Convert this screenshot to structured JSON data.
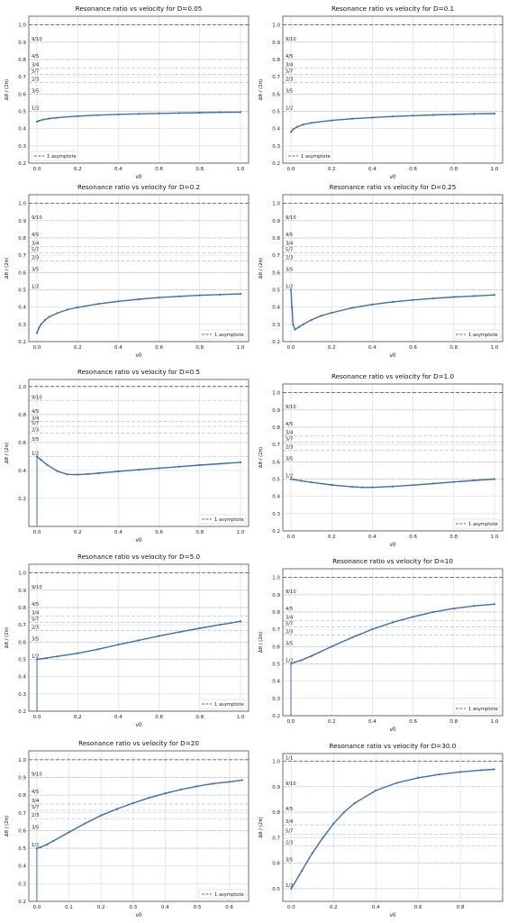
{
  "chart_data": [
    {
      "type": "line",
      "title": "Resonance ratio vs velocity for D=0.05",
      "xlabel": "v0",
      "ylabel": "Δθ / (2π)",
      "xlim": [
        -0.04,
        1.04
      ],
      "ylim": [
        0.2,
        1.05
      ],
      "xticks": [
        "0.0",
        "0.2",
        "0.4",
        "0.6",
        "0.8",
        "1.0"
      ],
      "yticks": [
        "0.2",
        "0.3",
        "0.4",
        "0.5",
        "0.6",
        "0.7",
        "0.8",
        "0.9",
        "1.0"
      ],
      "legend": {
        "label": "1 asymptote",
        "position": "lower-left"
      },
      "x": [
        0.0,
        0.01,
        0.03,
        0.06,
        0.1,
        0.2,
        0.3,
        0.4,
        0.5,
        0.6,
        0.7,
        0.8,
        0.9,
        1.0
      ],
      "y": [
        0.44,
        0.445,
        0.452,
        0.458,
        0.463,
        0.472,
        0.478,
        0.482,
        0.485,
        0.488,
        0.49,
        0.492,
        0.494,
        0.495
      ]
    },
    {
      "type": "line",
      "title": "Resonance ratio vs velocity for D=0.1",
      "xlabel": "v0",
      "ylabel": "Δθ / (2π)",
      "xlim": [
        -0.04,
        1.04
      ],
      "ylim": [
        0.2,
        1.05
      ],
      "xticks": [
        "0.0",
        "0.2",
        "0.4",
        "0.6",
        "0.8",
        "1.0"
      ],
      "yticks": [
        "0.2",
        "0.3",
        "0.4",
        "0.5",
        "0.6",
        "0.7",
        "0.8",
        "0.9",
        "1.0"
      ],
      "legend": {
        "label": "1 asymptote",
        "position": "lower-left"
      },
      "x": [
        0.0,
        0.01,
        0.03,
        0.06,
        0.1,
        0.2,
        0.3,
        0.4,
        0.5,
        0.6,
        0.7,
        0.8,
        0.9,
        1.0
      ],
      "y": [
        0.38,
        0.395,
        0.41,
        0.423,
        0.433,
        0.447,
        0.457,
        0.464,
        0.47,
        0.475,
        0.479,
        0.482,
        0.485,
        0.487
      ]
    },
    {
      "type": "line",
      "title": "Resonance ratio vs velocity for D=0.2",
      "xlabel": "v0",
      "ylabel": "Δθ / (2π)",
      "xlim": [
        -0.04,
        1.04
      ],
      "ylim": [
        0.2,
        1.05
      ],
      "xticks": [
        "0.0",
        "0.2",
        "0.4",
        "0.6",
        "0.8",
        "1.0"
      ],
      "yticks": [
        "0.2",
        "0.3",
        "0.4",
        "0.5",
        "0.6",
        "0.7",
        "0.8",
        "0.9",
        "1.0"
      ],
      "legend": {
        "label": "1 asymptote",
        "position": "lower-right"
      },
      "x": [
        0.0,
        0.01,
        0.02,
        0.04,
        0.06,
        0.1,
        0.15,
        0.2,
        0.3,
        0.4,
        0.5,
        0.6,
        0.7,
        0.8,
        0.9,
        1.0
      ],
      "y": [
        0.25,
        0.28,
        0.3,
        0.325,
        0.343,
        0.365,
        0.385,
        0.398,
        0.418,
        0.433,
        0.445,
        0.455,
        0.462,
        0.468,
        0.472,
        0.476
      ]
    },
    {
      "type": "line",
      "title": "Resonance ratio vs velocity for D=0.25",
      "xlabel": "v0",
      "ylabel": "Δθ / (2π)",
      "xlim": [
        -0.04,
        1.04
      ],
      "ylim": [
        0.2,
        1.05
      ],
      "xticks": [
        "0.0",
        "0.2",
        "0.4",
        "0.6",
        "0.8",
        "1.0"
      ],
      "yticks": [
        "0.2",
        "0.3",
        "0.4",
        "0.5",
        "0.6",
        "0.7",
        "0.8",
        "0.9",
        "1.0"
      ],
      "legend": {
        "label": "1 asymptote",
        "position": "lower-right"
      },
      "x": [
        0.0,
        0.005,
        0.01,
        0.02,
        0.04,
        0.06,
        0.1,
        0.15,
        0.2,
        0.3,
        0.4,
        0.5,
        0.6,
        0.7,
        0.8,
        0.9,
        1.0
      ],
      "y": [
        0.5,
        0.4,
        0.3,
        0.27,
        0.285,
        0.3,
        0.325,
        0.35,
        0.367,
        0.395,
        0.415,
        0.43,
        0.441,
        0.45,
        0.458,
        0.464,
        0.47
      ]
    },
    {
      "type": "line",
      "title": "Resonance ratio vs velocity for D=0.5",
      "xlabel": "v0",
      "ylabel": "Δθ / (2π)",
      "xlim": [
        -0.04,
        1.04
      ],
      "ylim": [
        0.0,
        1.05
      ],
      "xticks": [
        "0.0",
        "0.2",
        "0.4",
        "0.6",
        "0.8",
        "1.0"
      ],
      "yticks": [
        "0.2",
        "0.4",
        "0.6",
        "0.8",
        "1.0"
      ],
      "legend": {
        "label": "1 asymptote",
        "position": "lower-right"
      },
      "x": [
        0.0,
        0.02,
        0.05,
        0.1,
        0.15,
        0.2,
        0.25,
        0.3,
        0.4,
        0.5,
        0.6,
        0.7,
        0.8,
        0.9,
        1.0
      ],
      "y": [
        0.5,
        0.475,
        0.44,
        0.395,
        0.372,
        0.37,
        0.374,
        0.38,
        0.393,
        0.405,
        0.416,
        0.427,
        0.438,
        0.448,
        0.458
      ]
    },
    {
      "type": "line",
      "title": "Resonance ratio vs velocity for D=1.0",
      "xlabel": "v0",
      "ylabel": "Δθ / (2π)",
      "xlim": [
        -0.04,
        1.04
      ],
      "ylim": [
        0.2,
        1.05
      ],
      "xticks": [
        "0.0",
        "0.2",
        "0.4",
        "0.6",
        "0.8",
        "1.0"
      ],
      "yticks": [
        "0.2",
        "0.3",
        "0.4",
        "0.5",
        "0.6",
        "0.7",
        "0.8",
        "0.9",
        "1.0"
      ],
      "legend": {
        "label": "1 asymptote",
        "position": "lower-right"
      },
      "x": [
        0.0,
        0.05,
        0.1,
        0.2,
        0.3,
        0.35,
        0.4,
        0.5,
        0.6,
        0.7,
        0.8,
        0.9,
        1.0
      ],
      "y": [
        0.5,
        0.49,
        0.481,
        0.466,
        0.455,
        0.452,
        0.452,
        0.457,
        0.465,
        0.474,
        0.483,
        0.492,
        0.5
      ]
    },
    {
      "type": "line",
      "title": "Resonance ratio vs velocity for D=5.0",
      "xlabel": "v0",
      "ylabel": "Δθ / (2π)",
      "xlim": [
        -0.04,
        1.04
      ],
      "ylim": [
        0.2,
        1.05
      ],
      "xticks": [
        "0.0",
        "0.2",
        "0.4",
        "0.6",
        "0.8",
        "1.0"
      ],
      "yticks": [
        "0.2",
        "0.3",
        "0.4",
        "0.5",
        "0.6",
        "0.7",
        "0.8",
        "0.9",
        "1.0"
      ],
      "legend": {
        "label": "1 asymptote",
        "position": "lower-right"
      },
      "x": [
        0.0,
        0.05,
        0.1,
        0.2,
        0.3,
        0.4,
        0.5,
        0.6,
        0.7,
        0.8,
        0.9,
        1.0
      ],
      "y": [
        0.5,
        0.508,
        0.517,
        0.535,
        0.558,
        0.585,
        0.61,
        0.635,
        0.658,
        0.68,
        0.7,
        0.72
      ]
    },
    {
      "type": "line",
      "title": "Resonance ratio vs velocity for D=10",
      "xlabel": "v0",
      "ylabel": "Δθ / (2π)",
      "xlim": [
        -0.04,
        1.04
      ],
      "ylim": [
        0.2,
        1.05
      ],
      "xticks": [
        "0.0",
        "0.2",
        "0.4",
        "0.6",
        "0.8",
        "1.0"
      ],
      "yticks": [
        "0.2",
        "0.3",
        "0.4",
        "0.5",
        "0.6",
        "0.7",
        "0.8",
        "0.9",
        "1.0"
      ],
      "legend": {
        "label": "1 asymptote",
        "position": "lower-right"
      },
      "x": [
        0.0,
        0.02,
        0.05,
        0.1,
        0.2,
        0.3,
        0.4,
        0.5,
        0.6,
        0.7,
        0.8,
        0.9,
        1.0
      ],
      "y": [
        0.5,
        0.51,
        0.52,
        0.545,
        0.6,
        0.652,
        0.7,
        0.74,
        0.772,
        0.8,
        0.82,
        0.835,
        0.845
      ]
    },
    {
      "type": "line",
      "title": "Resonance ratio vs velocity for D=20",
      "xlabel": "v0",
      "ylabel": "Δθ / (2π)",
      "xlim": [
        -0.025,
        0.66
      ],
      "ylim": [
        0.2,
        1.05
      ],
      "xticks": [
        "0.0",
        "0.1",
        "0.2",
        "0.3",
        "0.4",
        "0.5",
        "0.6"
      ],
      "yticks": [
        "0.2",
        "0.3",
        "0.4",
        "0.5",
        "0.6",
        "0.7",
        "0.8",
        "0.9",
        "1.0"
      ],
      "legend": {
        "label": "1 asymptote",
        "position": "lower-right"
      },
      "x": [
        0.0,
        0.01,
        0.03,
        0.05,
        0.1,
        0.15,
        0.2,
        0.25,
        0.3,
        0.35,
        0.4,
        0.45,
        0.5,
        0.55,
        0.6,
        0.64
      ],
      "y": [
        0.5,
        0.505,
        0.52,
        0.54,
        0.59,
        0.64,
        0.685,
        0.722,
        0.755,
        0.785,
        0.81,
        0.832,
        0.85,
        0.865,
        0.875,
        0.885
      ]
    },
    {
      "type": "line",
      "title": "Resonance ratio vs velocity for D=30.0",
      "xlabel": "v0",
      "ylabel": "Δθ / (2π)",
      "xlim": [
        -0.04,
        1.0
      ],
      "ylim": [
        0.45,
        1.03
      ],
      "xticks": [
        "0.0",
        "0.2",
        "0.4",
        "0.6",
        "0.8"
      ],
      "yticks": [
        "0.5",
        "0.6",
        "0.7",
        "0.8",
        "0.9",
        "1.0"
      ],
      "legend": null,
      "x": [
        0.0,
        0.05,
        0.1,
        0.15,
        0.2,
        0.25,
        0.3,
        0.4,
        0.5,
        0.6,
        0.7,
        0.8,
        0.9,
        0.96
      ],
      "y": [
        0.5,
        0.57,
        0.64,
        0.7,
        0.755,
        0.8,
        0.835,
        0.885,
        0.915,
        0.935,
        0.948,
        0.958,
        0.965,
        0.968
      ]
    }
  ],
  "resonance_lines": [
    {
      "label": "1/1",
      "value": 1.0
    },
    {
      "label": "9/10",
      "value": 0.9
    },
    {
      "label": "4/5",
      "value": 0.8
    },
    {
      "label": "3/4",
      "value": 0.75
    },
    {
      "label": "5/7",
      "value": 0.714
    },
    {
      "label": "2/3",
      "value": 0.667
    },
    {
      "label": "3/5",
      "value": 0.6
    },
    {
      "label": "1/2",
      "value": 0.5
    }
  ],
  "colors": {
    "series": "#3a6fb0",
    "asymptote": "#3a6fb0",
    "resonance": "#b9cbe4",
    "grid": "#d9d9d9",
    "axis": "#333333"
  }
}
